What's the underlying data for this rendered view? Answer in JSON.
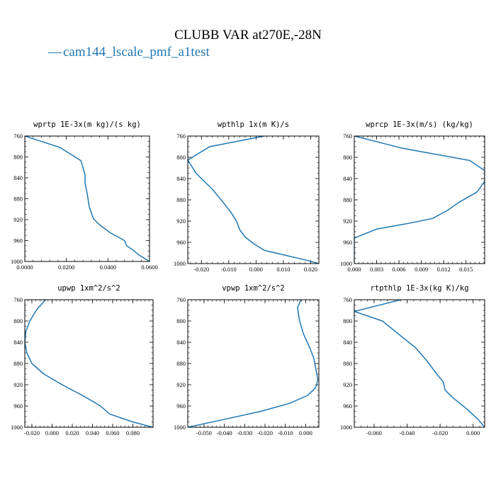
{
  "title": "CLUBB VAR at270E,-28N",
  "legend": {
    "dash": "—",
    "label": "cam144_lscale_pmf_a1test",
    "color": "#1f77b4"
  },
  "chart_data": [
    {
      "type": "line",
      "title": "wprtp  1E-3x(m kg)/(s kg)",
      "xlim": [
        0,
        0.06
      ],
      "ylim": [
        760,
        1000
      ],
      "xticks": [
        0,
        0.02,
        0.04,
        0.06
      ],
      "xtick_labels": [
        "0.0000",
        "0.0200",
        "0.0400",
        "0.0600"
      ],
      "yticks": [
        760,
        800,
        840,
        880,
        920,
        960,
        1000
      ],
      "ytick_labels": [
        "760",
        "800",
        "840",
        "880",
        "920",
        "960",
        "1000"
      ],
      "series": [
        {
          "x": [
            0.0,
            0.017,
            0.027,
            0.028,
            0.029,
            0.029,
            0.03,
            0.031,
            0.033,
            0.036,
            0.041,
            0.048,
            0.049,
            0.052,
            0.055,
            0.06
          ],
          "y": [
            760,
            782,
            807,
            820,
            835,
            850,
            870,
            895,
            918,
            930,
            945,
            960,
            970,
            978,
            988,
            1000
          ]
        }
      ]
    },
    {
      "type": "line",
      "title": "wpthlp  1x(m K)/s",
      "xlim": [
        -0.025,
        0.023
      ],
      "ylim": [
        760,
        1000
      ],
      "xticks": [
        -0.02,
        -0.01,
        0,
        0.01,
        0.02
      ],
      "xtick_labels": [
        "-0.020",
        "-0.010",
        "0.000",
        "0.010",
        "0.020"
      ],
      "yticks": [
        760,
        800,
        840,
        880,
        920,
        960,
        1000
      ],
      "ytick_labels": [
        "760",
        "800",
        "840",
        "880",
        "920",
        "960",
        "1000"
      ],
      "series": [
        {
          "x": [
            0.003,
            -0.017,
            -0.025,
            -0.022,
            -0.016,
            -0.012,
            -0.009,
            -0.007,
            -0.006,
            -0.004,
            -0.001,
            0.003,
            0.018,
            0.023
          ],
          "y": [
            760,
            780,
            805,
            830,
            860,
            885,
            905,
            922,
            936,
            950,
            962,
            975,
            993,
            1000
          ]
        }
      ]
    },
    {
      "type": "line",
      "title": "wprcp  1E-3x(m/s) (kg/kg)",
      "xlim": [
        0,
        0.0175
      ],
      "ylim": [
        760,
        1000
      ],
      "xticks": [
        0,
        0.003,
        0.006,
        0.009,
        0.012,
        0.015
      ],
      "xtick_labels": [
        "0.000",
        "0.003",
        "0.006",
        "0.009",
        "0.012",
        "0.015"
      ],
      "yticks": [
        760,
        800,
        840,
        880,
        920,
        960,
        1000
      ],
      "ytick_labels": [
        "760",
        "800",
        "840",
        "880",
        "920",
        "960",
        "1000"
      ],
      "series": [
        {
          "x": [
            0.0,
            0.0065,
            0.0155,
            0.0175,
            0.0175,
            0.0165,
            0.014,
            0.0125,
            0.0105,
            0.007,
            0.003,
            0.0,
            0.0
          ],
          "y": [
            760,
            783,
            806,
            825,
            845,
            865,
            885,
            900,
            915,
            925,
            935,
            952,
            1000
          ]
        }
      ]
    },
    {
      "type": "line",
      "title": "upwp  1xm^2/s^2",
      "xlim": [
        -0.027,
        0.1
      ],
      "ylim": [
        760,
        1000
      ],
      "xticks": [
        -0.02,
        0,
        0.02,
        0.04,
        0.06,
        0.08
      ],
      "xtick_labels": [
        "-0.020",
        "0.000",
        "0.020",
        "0.040",
        "0.060",
        "0.080"
      ],
      "yticks": [
        760,
        800,
        840,
        880,
        920,
        960,
        1000
      ],
      "ytick_labels": [
        "760",
        "800",
        "840",
        "880",
        "920",
        "960",
        "1000"
      ],
      "series": [
        {
          "x": [
            -0.005,
            -0.015,
            -0.022,
            -0.026,
            -0.027,
            -0.025,
            -0.02,
            -0.008,
            0.01,
            0.03,
            0.048,
            0.057,
            0.08,
            0.1
          ],
          "y": [
            757,
            778,
            800,
            820,
            840,
            860,
            880,
            900,
            920,
            940,
            960,
            975,
            990,
            1000
          ]
        }
      ]
    },
    {
      "type": "line",
      "title": "vpwp  1xm^2/s^2",
      "xlim": [
        -0.058,
        0.0065
      ],
      "ylim": [
        760,
        1000
      ],
      "xticks": [
        -0.05,
        -0.04,
        -0.03,
        -0.02,
        -0.01,
        0
      ],
      "xtick_labels": [
        "-0.050",
        "-0.040",
        "-0.030",
        "-0.020",
        "-0.010",
        "0.000"
      ],
      "yticks": [
        760,
        800,
        840,
        880,
        920,
        960,
        1000
      ],
      "ytick_labels": [
        "760",
        "800",
        "840",
        "880",
        "920",
        "960",
        "1000"
      ],
      "series": [
        {
          "x": [
            -0.002,
            -0.004,
            -0.003,
            -0.001,
            0.002,
            0.004,
            0.005,
            0.006,
            0.005,
            0.001,
            -0.008,
            -0.022,
            -0.04,
            -0.058
          ],
          "y": [
            757,
            775,
            800,
            825,
            850,
            870,
            890,
            910,
            925,
            940,
            955,
            970,
            985,
            1000
          ]
        }
      ]
    },
    {
      "type": "line",
      "title": "rtpthlp  1E-3x(kg K)/kg",
      "xlim": [
        -0.072,
        0.007
      ],
      "ylim": [
        760,
        1000
      ],
      "xticks": [
        -0.06,
        -0.04,
        -0.02,
        0
      ],
      "xtick_labels": [
        "-0.060",
        "-0.040",
        "-0.020",
        "0.000"
      ],
      "yticks": [
        760,
        800,
        840,
        880,
        920,
        960,
        1000
      ],
      "ytick_labels": [
        "760",
        "800",
        "840",
        "880",
        "920",
        "960",
        "1000"
      ],
      "series": [
        {
          "x": [
            -0.04,
            -0.072,
            -0.055,
            -0.045,
            -0.035,
            -0.028,
            -0.022,
            -0.018,
            -0.017,
            -0.012,
            -0.004,
            0.003,
            0.007
          ],
          "y": [
            757,
            782,
            800,
            825,
            850,
            875,
            900,
            915,
            930,
            945,
            965,
            985,
            1000
          ]
        }
      ]
    }
  ]
}
